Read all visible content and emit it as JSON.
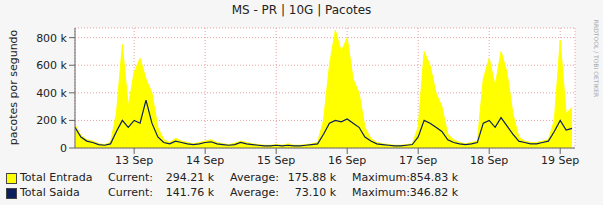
{
  "chart_data": {
    "type": "line",
    "title": "MS - PR | 10G | Pacotes",
    "y_label": "pacotes por segundo",
    "watermark": "RRDTOOL / TOBI OETIKER",
    "x": [
      4,
      6,
      8,
      10,
      12,
      14,
      16,
      18,
      20,
      22,
      24,
      26,
      28,
      30,
      32,
      34,
      36,
      38,
      40,
      42,
      44,
      46,
      48,
      50,
      52,
      54,
      56,
      58,
      60,
      62,
      64,
      66,
      68,
      70,
      72,
      74,
      76,
      78,
      80,
      82,
      84,
      86,
      88,
      90,
      92,
      94,
      96,
      98,
      100,
      102,
      104,
      106,
      108,
      110,
      112,
      114,
      116,
      118,
      120,
      122,
      124,
      126,
      128,
      130,
      132,
      134,
      136,
      138,
      140,
      142,
      144,
      146,
      148,
      150,
      152,
      154,
      156,
      158,
      160,
      162,
      164,
      166,
      168,
      170,
      172
    ],
    "xlim": [
      4,
      173
    ],
    "xticks": [
      {
        "value": 24,
        "label": "13 Sep"
      },
      {
        "value": 48,
        "label": "14 Sep"
      },
      {
        "value": 72,
        "label": "15 Sep"
      },
      {
        "value": 96,
        "label": "16 Sep"
      },
      {
        "value": 120,
        "label": "17 Sep"
      },
      {
        "value": 144,
        "label": "18 Sep"
      },
      {
        "value": 168,
        "label": "19 Sep"
      }
    ],
    "ylim": [
      0,
      870000
    ],
    "yticks": [
      0,
      {
        "value": 200000,
        "label": "200 k"
      },
      {
        "value": 400000,
        "label": "400 k"
      },
      {
        "value": 600000,
        "label": "600 k"
      },
      {
        "value": 800000,
        "label": "800 k"
      }
    ],
    "grid": true,
    "series": [
      {
        "name": "Total Entrada",
        "type": "area",
        "color": "#ffff00",
        "stats": [
          {
            "label": "Current:",
            "text": "294.21 k"
          },
          {
            "label": "Average:",
            "text": "175.88 k"
          },
          {
            "label": "Maximum:",
            "text": "854.83 k"
          }
        ],
        "values": [
          170000,
          90000,
          60000,
          50000,
          30000,
          25000,
          40000,
          250000,
          750000,
          300000,
          550000,
          650000,
          500000,
          400000,
          150000,
          60000,
          40000,
          70000,
          50000,
          40000,
          30000,
          40000,
          50000,
          60000,
          40000,
          30000,
          25000,
          35000,
          50000,
          40000,
          30000,
          25000,
          20000,
          20000,
          25000,
          20000,
          30000,
          20000,
          20000,
          25000,
          30000,
          40000,
          200000,
          600000,
          854830,
          700000,
          800000,
          500000,
          400000,
          150000,
          70000,
          40000,
          30000,
          25000,
          20000,
          20000,
          25000,
          30000,
          150000,
          700000,
          600000,
          400000,
          300000,
          100000,
          60000,
          40000,
          30000,
          40000,
          50000,
          500000,
          650000,
          450000,
          700000,
          550000,
          250000,
          80000,
          50000,
          40000,
          40000,
          50000,
          60000,
          200000,
          780000,
          250000,
          294210
        ]
      },
      {
        "name": "Total Saida",
        "type": "line",
        "color": "#0a1f5c",
        "stats": [
          {
            "label": "Current:",
            "text": "141.76 k"
          },
          {
            "label": "Average:",
            "text": "73.10 k"
          },
          {
            "label": "Maximum:",
            "text": "346.82 k"
          }
        ],
        "values": [
          150000,
          80000,
          50000,
          40000,
          25000,
          20000,
          30000,
          120000,
          200000,
          150000,
          200000,
          180000,
          346820,
          180000,
          80000,
          40000,
          30000,
          50000,
          40000,
          30000,
          25000,
          30000,
          40000,
          45000,
          30000,
          25000,
          20000,
          25000,
          40000,
          30000,
          25000,
          20000,
          15000,
          15000,
          20000,
          15000,
          20000,
          15000,
          15000,
          20000,
          25000,
          30000,
          100000,
          180000,
          200000,
          190000,
          210000,
          180000,
          150000,
          80000,
          50000,
          30000,
          25000,
          20000,
          15000,
          15000,
          20000,
          25000,
          80000,
          200000,
          180000,
          150000,
          120000,
          60000,
          40000,
          30000,
          25000,
          30000,
          40000,
          180000,
          200000,
          150000,
          220000,
          160000,
          100000,
          50000,
          40000,
          30000,
          30000,
          40000,
          50000,
          120000,
          200000,
          130000,
          141760
        ]
      }
    ]
  }
}
